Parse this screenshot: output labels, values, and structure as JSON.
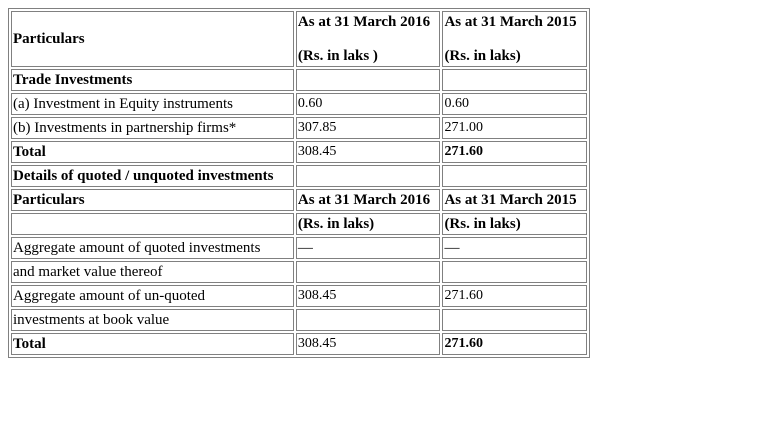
{
  "table": {
    "header": {
      "particulars": "Particulars",
      "col1_line1": "As at 31 March 2016",
      "col1_line2": "(Rs. in laks )",
      "col2_line1": "As at 31 March 2015",
      "col2_line2": "(Rs. in laks)"
    },
    "rows": [
      {
        "label": "Trade Investments",
        "v2016": "",
        "v2015": ""
      },
      {
        "label": "(a) Investment in Equity instruments",
        "v2016": "0.60",
        "v2015": "0.60"
      },
      {
        "label": "(b) Investments in partnership firms*",
        "v2016": "307.85",
        "v2015": "271.00"
      },
      {
        "label": "Total",
        "v2016": "308.45",
        "v2015": "271.60"
      },
      {
        "label": "Details of quoted / unquoted investments",
        "v2016": "",
        "v2015": ""
      },
      {
        "label": "Particulars",
        "v2016": "As at 31 March 2016",
        "v2015": "As at 31 March 2015"
      },
      {
        "label": "",
        "v2016": "(Rs. in laks)",
        "v2015": "(Rs. in laks)"
      },
      {
        "label": "Aggregate amount of quoted investments",
        "v2016": "—",
        "v2015": "—"
      },
      {
        "label": "and market value thereof",
        "v2016": "",
        "v2015": ""
      },
      {
        "label": "Aggregate amount of un-quoted",
        "v2016": "308.45",
        "v2015": "271.60"
      },
      {
        "label": "investments at book value",
        "v2016": "",
        "v2015": ""
      },
      {
        "label": "Total",
        "v2016": "308.45",
        "v2015": "271.60"
      }
    ]
  }
}
